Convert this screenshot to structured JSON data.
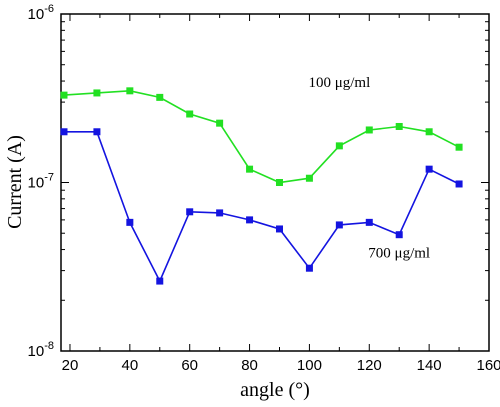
{
  "chart_data": {
    "type": "line",
    "xlabel": "angle (°)",
    "ylabel": "Current (A)",
    "xlim": [
      17,
      160
    ],
    "ylim": [
      1e-08,
      1e-06
    ],
    "y_scale": "log",
    "grid": false,
    "x_ticks": [
      20,
      40,
      60,
      80,
      100,
      120,
      140,
      160
    ],
    "x_tick_labels": [
      "20",
      "40",
      "60",
      "80",
      "100",
      "120",
      "140",
      "160"
    ],
    "y_ticks": [
      1e-08,
      1e-07,
      1e-06
    ],
    "y_tick_labels": [
      {
        "base": "10",
        "exp": "-8"
      },
      {
        "base": "10",
        "exp": "-7"
      },
      {
        "base": "10",
        "exp": "-6"
      }
    ],
    "x": [
      18,
      29,
      40,
      50,
      60,
      70,
      80,
      90,
      100,
      110,
      120,
      130,
      140,
      150
    ],
    "series": [
      {
        "name": "100 μg/ml",
        "color": "#22e022",
        "marker": "square",
        "label_anchor": {
          "x": 110,
          "y": 3.7e-07
        },
        "values": [
          3.3e-07,
          3.4e-07,
          3.5e-07,
          3.2e-07,
          2.55e-07,
          2.25e-07,
          1.2e-07,
          1e-07,
          1.06e-07,
          1.65e-07,
          2.05e-07,
          2.15e-07,
          2e-07,
          1.62e-07
        ]
      },
      {
        "name": "700 μg/ml",
        "color": "#1414e0",
        "marker": "square",
        "label_anchor": {
          "x": 130,
          "y": 3.6e-08
        },
        "values": [
          2e-07,
          2e-07,
          5.8e-08,
          2.6e-08,
          6.7e-08,
          6.6e-08,
          6e-08,
          5.3e-08,
          3.1e-08,
          5.6e-08,
          5.8e-08,
          4.9e-08,
          1.2e-07,
          9.8e-08
        ]
      }
    ]
  }
}
